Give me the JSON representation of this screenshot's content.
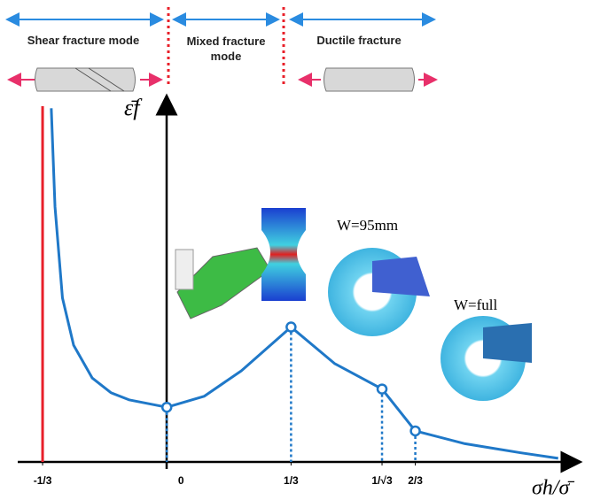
{
  "chart_data": {
    "type": "line",
    "x_label": "σh/σ̄",
    "y_label": "ε̄f",
    "annotations": {
      "shear": "Shear fracture mode",
      "mixed": "Mixed fracture mode",
      "ductile": "Ductile fracture",
      "w95": "W=95mm",
      "wfull": "W=full"
    },
    "xlim": [
      -0.4,
      1.11
    ],
    "ylim": [
      0,
      1
    ],
    "xticks": [
      {
        "value": -0.3333,
        "label": "-1/3"
      },
      0,
      {
        "value": 0.3333,
        "label": "1/3"
      },
      {
        "value": 0.5774,
        "label": "1/√3"
      },
      {
        "value": 0.6667,
        "label": "2/3"
      }
    ],
    "reference_line": {
      "x": -0.3333,
      "color": "#e8202a"
    },
    "series": [
      {
        "color": "#1f78c8",
        "x": [
          -0.31,
          -0.3,
          -0.28,
          -0.25,
          -0.2,
          -0.15,
          -0.1,
          -0.05,
          0,
          0.1,
          0.2,
          0.3333,
          0.45,
          0.5774,
          0.6667,
          0.8,
          0.95,
          1.05
        ],
        "values": [
          0.97,
          0.7,
          0.45,
          0.32,
          0.23,
          0.19,
          0.17,
          0.16,
          0.15,
          0.18,
          0.25,
          0.37,
          0.27,
          0.2,
          0.085,
          0.05,
          0.025,
          0.01
        ]
      }
    ],
    "markers": {
      "x": [
        0,
        0.3333,
        0.5774,
        0.6667
      ],
      "values": [
        0.15,
        0.37,
        0.2,
        0.085
      ]
    }
  }
}
